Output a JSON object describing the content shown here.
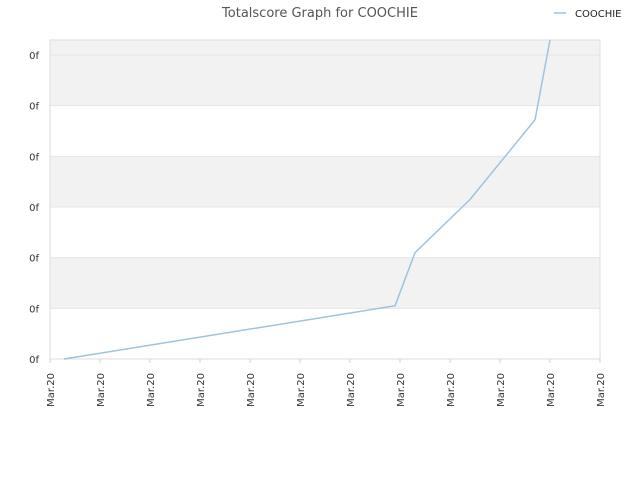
{
  "chart_data": {
    "type": "line",
    "title": "Totalscore Graph for COOCHIE",
    "xlabel": "",
    "ylabel": "",
    "legend": {
      "placement": "top-right"
    },
    "grid": true,
    "x_tick_labels": [
      "Mar.20",
      "Mar.20",
      "Mar.20",
      "Mar.20",
      "Mar.20",
      "Mar.20",
      "Mar.20",
      "Mar.20",
      "Mar.20",
      "Mar.20",
      "Mar.20",
      "Mar.20"
    ],
    "y_tick_labels": [
      "0f",
      "0f",
      "0f",
      "0f",
      "0f",
      "0f",
      "0f"
    ],
    "xlim": [
      0,
      11
    ],
    "ylim": [
      0,
      6
    ],
    "series": [
      {
        "name": "COOCHIE",
        "color": "#9ec4dd",
        "x": [
          0.28,
          6.9,
          7.3,
          8.4,
          9.7,
          10.0
        ],
        "y": [
          0.0,
          1.0,
          2.0,
          3.0,
          4.5,
          6.0
        ]
      }
    ],
    "colors": {
      "band": "#f2f2f2",
      "grid": "#e6e6e6",
      "axis": "#cccccc"
    }
  }
}
